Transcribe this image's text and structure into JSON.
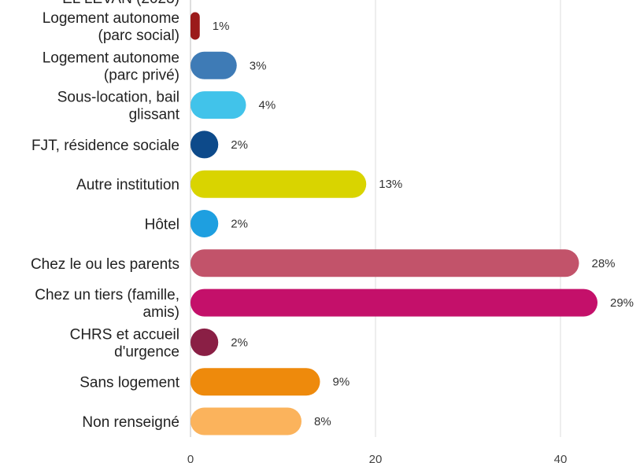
{
  "chart_data": {
    "type": "bar",
    "orientation": "horizontal",
    "title_partial": "EL LEVAN (2023)",
    "categories": [
      [
        "Logement autonome",
        "(parc social)"
      ],
      [
        "Logement autonome",
        "(parc privé)"
      ],
      [
        "Sous-location, bail",
        "glissant"
      ],
      [
        "FJT, résidence sociale"
      ],
      [
        "Autre institution"
      ],
      [
        "Hôtel"
      ],
      [
        "Chez le ou les parents"
      ],
      [
        "Chez un tiers (famille,",
        "amis)"
      ],
      [
        "CHRS et accueil",
        "d'urgence"
      ],
      [
        "Sans logement"
      ],
      [
        "Non renseigné"
      ]
    ],
    "values": [
      1,
      5,
      6,
      3,
      19,
      3,
      42,
      44,
      3,
      14,
      12
    ],
    "value_labels": [
      "1%",
      "3%",
      "4%",
      "2%",
      "13%",
      "2%",
      "28%",
      "29%",
      "2%",
      "9%",
      "8%"
    ],
    "colors": [
      "#9b1b1b",
      "#3e7bb6",
      "#41c3ea",
      "#0d4a8a",
      "#d9d400",
      "#1e9fe0",
      "#c2536a",
      "#c4106a",
      "#8a1f45",
      "#ee8a0c",
      "#fbb35c"
    ],
    "xticks": [
      0,
      20,
      40
    ],
    "xlim": [
      0,
      48
    ],
    "grid": true,
    "xlabel": "",
    "ylabel": ""
  }
}
